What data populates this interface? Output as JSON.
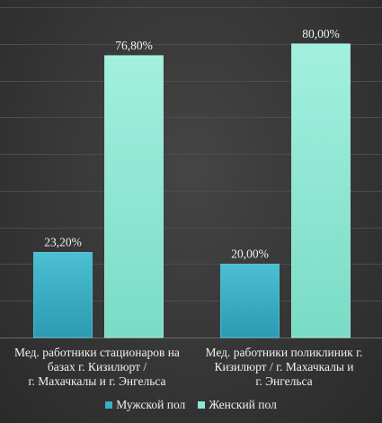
{
  "chart_data": {
    "type": "bar",
    "categories": [
      "Мед. работники стационаров на базах г. Кизилюрт / г. Махачкалы и г. Энгельса",
      "Мед. работники поликлиник г. Кизилюрт / г. Махачкалы и г. Энгельса"
    ],
    "category_lines": [
      [
        "Мед. работники стационаров на",
        "базах г. Кизилюрт /",
        "г. Махачкалы и г. Энгельса"
      ],
      [
        "Мед. работники поликлиник г.",
        "Кизилюрт / г. Махачкалы и",
        "г. Энгельса"
      ]
    ],
    "series": [
      {
        "name": "Мужской пол",
        "values": [
          23.2,
          20.0
        ],
        "labels": [
          "23,20%",
          "20,00%"
        ],
        "color": "#3aaec4"
      },
      {
        "name": "Женский пол",
        "values": [
          76.8,
          80.0
        ],
        "labels": [
          "76,80%",
          "80,00%"
        ],
        "color": "#8fe8d4"
      }
    ],
    "ylim": [
      0,
      90
    ],
    "grid": true,
    "legend_position": "bottom"
  }
}
